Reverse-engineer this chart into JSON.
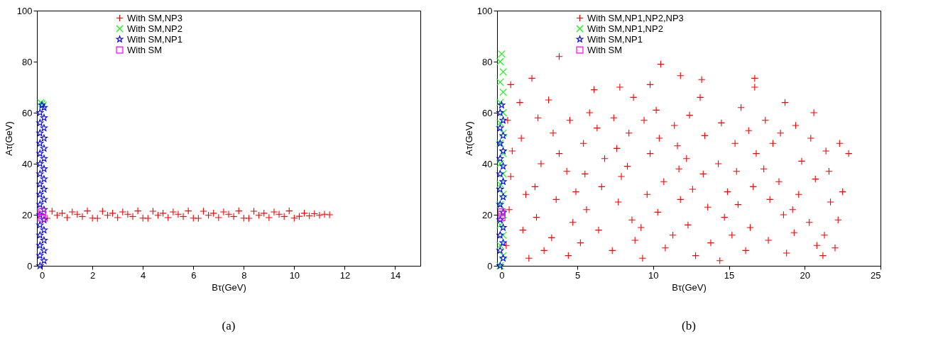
{
  "chart_data": [
    {
      "type": "scatter",
      "xlabel": "Bτ(GeV)",
      "ylabel": "Aτ(GeV)",
      "annotations": [
        "(a)"
      ],
      "legend": "top left",
      "grid": false,
      "xlim": [
        -0.2,
        15
      ],
      "xticks": [
        0,
        2,
        4,
        6,
        8,
        10,
        12,
        14
      ],
      "ylim": [
        0,
        100
      ],
      "yticks": [
        0,
        20,
        40,
        60,
        80,
        100
      ],
      "series": [
        {
          "name": "With SM,NP3",
          "color": "#ff0000",
          "marker": "cross",
          "x": [
            0.2,
            0.4,
            0.6,
            0.8,
            1.0,
            1.2,
            1.4,
            1.6,
            1.8,
            2.0,
            2.2,
            2.4,
            2.6,
            2.8,
            3.0,
            3.2,
            3.4,
            3.6,
            3.8,
            4.0,
            4.2,
            4.4,
            4.6,
            4.8,
            5.0,
            5.2,
            5.4,
            5.6,
            5.8,
            6.0,
            6.2,
            6.4,
            6.6,
            6.8,
            7.0,
            7.2,
            7.4,
            7.6,
            7.8,
            8.0,
            8.2,
            8.4,
            8.6,
            8.8,
            9.0,
            9.2,
            9.4,
            9.6,
            9.8,
            10.0,
            10.2,
            10.4,
            10.6,
            10.8,
            11.0,
            11.2,
            11.4
          ],
          "values": [
            18.6,
            21.4,
            19.8,
            20.6,
            18.9,
            21.1,
            20.2,
            19.3,
            21.5,
            18.7,
            18.6,
            21.4,
            19.8,
            20.6,
            18.9,
            21.1,
            20.2,
            19.3,
            21.5,
            18.7,
            18.6,
            21.4,
            19.8,
            20.6,
            18.9,
            21.1,
            20.2,
            19.3,
            21.5,
            18.7,
            18.6,
            21.4,
            19.8,
            20.6,
            18.9,
            21.1,
            20.2,
            19.3,
            21.5,
            18.7,
            18.6,
            21.4,
            19.8,
            20.6,
            18.9,
            21.1,
            20.2,
            19.3,
            21.5,
            18.7,
            19.4,
            20.6,
            19.6,
            20.4,
            19.8,
            20.2,
            20.0
          ]
        },
        {
          "name": "With SM,NP2",
          "color": "#00ff00",
          "marker": "x",
          "x": [
            0,
            -0.05,
            0.05
          ],
          "values": [
            63.5,
            64,
            63
          ]
        },
        {
          "name": "With SM,NP1",
          "color": "#0000ff",
          "marker": "star",
          "x": [
            -0.08,
            0.08,
            -0.08,
            0.08,
            -0.08,
            0.08,
            -0.08,
            0.08,
            -0.08,
            0.08,
            -0.08,
            0.08,
            -0.08,
            0.08,
            -0.08,
            0.08,
            -0.08,
            0.08,
            -0.08,
            0.08,
            -0.08,
            0.08,
            -0.08,
            0.08,
            -0.08,
            0.08,
            -0.08,
            0.08,
            -0.08,
            0.08,
            -0.08,
            0.08,
            0
          ],
          "values": [
            0,
            2,
            4,
            6,
            8,
            10,
            12,
            14,
            16,
            18,
            20,
            22,
            24,
            26,
            28,
            30,
            32,
            34,
            36,
            38,
            40,
            42,
            44,
            46,
            48,
            50,
            52,
            54,
            56,
            58,
            60,
            62,
            63
          ]
        },
        {
          "name": "With SM",
          "color": "#ff00ff",
          "marker": "square",
          "x": [
            0,
            0,
            0
          ],
          "values": [
            18.8,
            20,
            21.2
          ]
        }
      ]
    },
    {
      "type": "scatter",
      "xlabel": "Bτ(GeV)",
      "ylabel": "Aτ(GeV)",
      "annotations": [
        "(b)"
      ],
      "legend": "top left",
      "grid": false,
      "xlim": [
        -0.3,
        25
      ],
      "xticks": [
        0,
        5,
        10,
        15,
        20,
        25
      ],
      "ylim": [
        0,
        100
      ],
      "yticks": [
        0,
        20,
        40,
        60,
        80,
        100
      ],
      "series": [
        {
          "name": "With SM,NP1,NP2,NP3",
          "color": "#ff0000",
          "marker": "cross",
          "x": [
            0.4,
            0.6,
            0.5,
            0.3,
            0.7,
            1.3,
            1.6,
            1.4,
            1.8,
            1.2,
            2.4,
            2.6,
            2.3,
            2.8,
            2.2,
            3.4,
            3.6,
            3.3,
            3.8,
            3.1,
            4.5,
            4.3,
            4.7,
            4.4,
            4.9,
            5.4,
            5.6,
            5.2,
            5.8,
            5.5,
            6.3,
            6.6,
            6.4,
            6.8,
            6.1,
            7.4,
            7.7,
            7.3,
            7.6,
            7.9,
            8.4,
            8.6,
            8.3,
            8.8,
            8.7,
            9.4,
            9.6,
            9.3,
            9.8,
            9.2,
            10.4,
            10.7,
            10.3,
            10.8,
            10.2,
            11.4,
            11.7,
            11.3,
            11.8,
            11.6,
            12.4,
            12.6,
            12.3,
            12.8,
            12.2,
            13.4,
            13.6,
            13.3,
            13.8,
            13.1,
            14.5,
            14.3,
            14.7,
            14.4,
            14.9,
            15.4,
            15.6,
            15.2,
            15.8,
            15.5,
            16.3,
            16.6,
            16.4,
            16.8,
            16.1,
            17.4,
            17.7,
            17.3,
            17.6,
            17.9,
            18.4,
            18.6,
            18.3,
            18.8,
            18.7,
            19.4,
            19.6,
            19.3,
            19.8,
            19.2,
            20.4,
            20.7,
            20.3,
            20.8,
            20.6,
            21.4,
            21.7,
            21.3,
            21.6,
            21.2,
            22.3,
            22.5,
            22.0,
            22.2,
            3.8,
            10.5,
            11.8,
            13.2,
            16.7,
            16.7,
            2.0,
            0.6,
            22.9,
            9.8,
            7.8
          ],
          "values": [
            57,
            35,
            22,
            8,
            45,
            50,
            28,
            14,
            3,
            64,
            58,
            40,
            19,
            6,
            31,
            52,
            26,
            11,
            44,
            65,
            57,
            37,
            17,
            4,
            29,
            48,
            22,
            9,
            60,
            36,
            54,
            31,
            14,
            42,
            69,
            58,
            25,
            6,
            46,
            35,
            52,
            18,
            39,
            10,
            66,
            57,
            28,
            3,
            44,
            15,
            50,
            33,
            21,
            7,
            61,
            55,
            38,
            12,
            26,
            47,
            59,
            30,
            16,
            4,
            42,
            51,
            23,
            36,
            9,
            66,
            56,
            40,
            19,
            2,
            29,
            48,
            24,
            12,
            62,
            37,
            53,
            31,
            15,
            44,
            6,
            57,
            26,
            38,
            10,
            48,
            52,
            20,
            33,
            5,
            64,
            55,
            28,
            13,
            41,
            22,
            50,
            34,
            17,
            8,
            60,
            45,
            25,
            12,
            37,
            4,
            48,
            29,
            7,
            18,
            82,
            79,
            74.5,
            73,
            73.5,
            70,
            73.5,
            71,
            44,
            71,
            70
          ]
        },
        {
          "name": "With SM,NP1,NP2",
          "color": "#00ff00",
          "marker": "x",
          "x": [
            -0.1,
            0.1,
            -0.1,
            0.1,
            -0.1,
            0.1,
            -0.1,
            0.1,
            -0.1,
            0.1,
            -0.1,
            0.1,
            -0.1,
            0.1,
            -0.1,
            0.1,
            -0.1,
            0.1,
            -0.1,
            0.1,
            -0.1,
            0
          ],
          "values": [
            0,
            4,
            8,
            12,
            16,
            20,
            24,
            28,
            32,
            36,
            40,
            44,
            48,
            52,
            56,
            60,
            64,
            68,
            72,
            76,
            80,
            83
          ]
        },
        {
          "name": "With SM,NP1",
          "color": "#0000ff",
          "marker": "star",
          "x": [
            -0.1,
            0.1,
            -0.1,
            0.1,
            -0.1,
            0.1,
            -0.1,
            0.1,
            -0.1,
            0.1,
            -0.1,
            0.1,
            -0.1,
            0.1,
            -0.1,
            0.1,
            -0.1,
            0.1,
            -0.1,
            0.1,
            -0.1,
            0
          ],
          "values": [
            0,
            3,
            6,
            9,
            12,
            15,
            18,
            21,
            24,
            27,
            30,
            33,
            36,
            39,
            42,
            45,
            48,
            51,
            54,
            57,
            60,
            63
          ]
        },
        {
          "name": "With SM",
          "color": "#ff00ff",
          "marker": "square",
          "x": [
            0,
            0,
            0
          ],
          "values": [
            19,
            20,
            21
          ]
        }
      ]
    }
  ]
}
